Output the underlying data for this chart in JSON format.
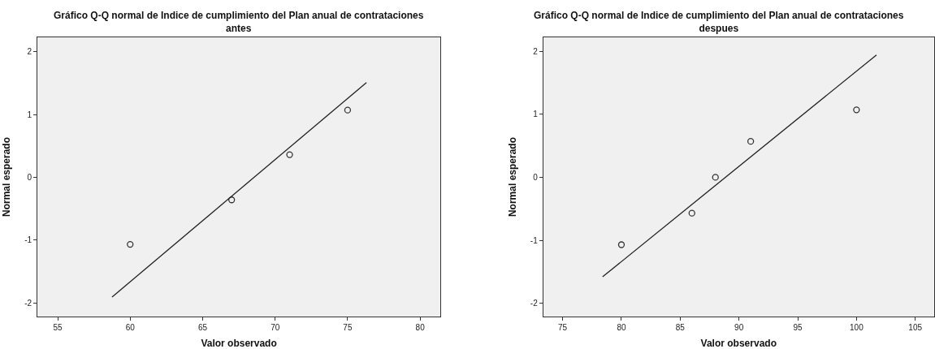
{
  "chart_data": [
    {
      "type": "scatter",
      "title": "Gráfico Q-Q normal de Indice de cumplimiento del Plan anual de contrataciones antes",
      "xlabel": "Valor observado",
      "ylabel": "Normal esperado",
      "xlim": [
        53.6,
        81.4
      ],
      "xticks": [
        55,
        60,
        65,
        70,
        75,
        80
      ],
      "ylim": [
        -2.22,
        2.23
      ],
      "yticks": [
        -2,
        -1,
        0,
        1,
        2
      ],
      "grid": false,
      "series": [
        {
          "marker": "circle",
          "color": "#333333",
          "x": [
            60,
            67,
            71,
            75
          ],
          "values": [
            -1.07,
            -0.36,
            0.36,
            1.07
          ]
        },
        {
          "type": "line",
          "color": "#222222",
          "x": [
            58.75,
            76.3
          ],
          "values": [
            -1.91,
            1.51
          ]
        }
      ]
    },
    {
      "type": "scatter",
      "title": "Gráfico Q-Q normal de Indice de cumplimiento del Plan anual de contrataciones despues",
      "xlabel": "Valor observado",
      "ylabel": "Normal esperado",
      "xlim": [
        73.35,
        106.6
      ],
      "xticks": [
        75,
        80,
        85,
        90,
        95,
        100,
        105
      ],
      "ylim": [
        -2.21,
        2.22
      ],
      "yticks": [
        -2,
        -1,
        0,
        1,
        2
      ],
      "grid": false,
      "series": [
        {
          "marker": "circle",
          "color": "#333333",
          "x": [
            80,
            86,
            88,
            91,
            100
          ],
          "values": [
            -1.07,
            -0.57,
            0,
            0.57,
            1.07
          ]
        },
        {
          "type": "line",
          "color": "#222222",
          "x": [
            78.4,
            101.7
          ],
          "values": [
            -1.58,
            1.94
          ]
        }
      ]
    }
  ]
}
